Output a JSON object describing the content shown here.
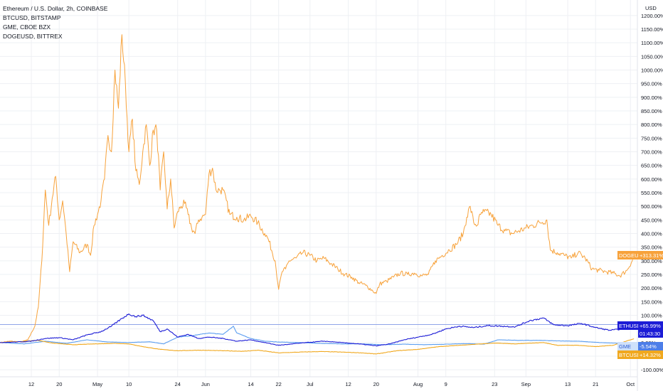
{
  "legend": {
    "title": "Ethereum / U.S. Dollar, 2h, COINBASE",
    "items": [
      "BTCUSD, BITSTAMP",
      "GME, CBOE BZX",
      "DOGEUSD, BITTREX"
    ]
  },
  "colors": {
    "doge": "#f7a23b",
    "eth": "#1c1cd6",
    "gme": "#5b9ef0",
    "btc": "#f0a81e",
    "grid": "#eef0f4",
    "axis_text": "#131722"
  },
  "badges": {
    "doge": {
      "name": "DOGEUSD",
      "value": "+313.31%"
    },
    "eth": {
      "name": "ETHUSD",
      "value": "+65.99%",
      "countdown": "01:43:30"
    },
    "gme": {
      "name": "GME",
      "value": "-5.54%"
    },
    "btc": {
      "name": "BTCUSD",
      "value": "+14.32%"
    }
  },
  "chart_data": {
    "type": "line",
    "ylabel": "USD",
    "ylim": [
      -110,
      1210
    ],
    "y_ticks": [
      -100,
      -50,
      0,
      50,
      100,
      150,
      200,
      250,
      300,
      350,
      400,
      450,
      500,
      550,
      600,
      650,
      700,
      750,
      800,
      850,
      900,
      950,
      1000,
      1050,
      1100,
      1150,
      1200
    ],
    "y_tick_labels": [
      "-100.00%",
      "-50.00%",
      "0.00%",
      "50.00%",
      "100.00%",
      "150.00%",
      "200.00%",
      "250.00%",
      "300.00%",
      "350.00%",
      "400.00%",
      "450.00%",
      "500.00%",
      "550.00%",
      "600.00%",
      "650.00%",
      "700.00%",
      "750.00%",
      "800.00%",
      "850.00%",
      "900.00%",
      "950.00%",
      "1000.00%",
      "1050.00%",
      "1100.00%",
      "1150.00%",
      "1200.00%"
    ],
    "x_ticks": [
      {
        "date": "2021-04-12",
        "label": "12"
      },
      {
        "date": "2021-04-20",
        "label": "20"
      },
      {
        "date": "2021-05-01",
        "label": "May"
      },
      {
        "date": "2021-05-10",
        "label": "10"
      },
      {
        "date": "2021-05-24",
        "label": "24"
      },
      {
        "date": "2021-06-01",
        "label": "Jun"
      },
      {
        "date": "2021-06-14",
        "label": "14"
      },
      {
        "date": "2021-06-22",
        "label": "22"
      },
      {
        "date": "2021-07-01",
        "label": "Jul"
      },
      {
        "date": "2021-07-12",
        "label": "12"
      },
      {
        "date": "2021-07-20",
        "label": "20"
      },
      {
        "date": "2021-08-01",
        "label": "Aug"
      },
      {
        "date": "2021-08-09",
        "label": "9"
      },
      {
        "date": "2021-08-23",
        "label": "23"
      },
      {
        "date": "2021-09-01",
        "label": "Sep"
      },
      {
        "date": "2021-09-13",
        "label": "13"
      },
      {
        "date": "2021-09-21",
        "label": "21"
      },
      {
        "date": "2021-10-01",
        "label": "Oct"
      }
    ],
    "x_range": [
      "2021-04-03",
      "2021-10-03"
    ],
    "grid": true,
    "reference_line": {
      "y": 65.99
    },
    "series": [
      {
        "name": "DOGEUSD",
        "color": "#f7a23b",
        "points": [
          [
            "2021-04-03",
            0
          ],
          [
            "2021-04-06",
            5
          ],
          [
            "2021-04-09",
            2
          ],
          [
            "2021-04-11",
            10
          ],
          [
            "2021-04-13",
            60
          ],
          [
            "2021-04-14",
            130
          ],
          [
            "2021-04-15",
            300
          ],
          [
            "2021-04-16",
            560
          ],
          [
            "2021-04-17",
            430
          ],
          [
            "2021-04-18",
            530
          ],
          [
            "2021-04-19",
            610
          ],
          [
            "2021-04-20",
            450
          ],
          [
            "2021-04-21",
            520
          ],
          [
            "2021-04-22",
            400
          ],
          [
            "2021-04-23",
            260
          ],
          [
            "2021-04-24",
            370
          ],
          [
            "2021-04-26",
            330
          ],
          [
            "2021-04-28",
            360
          ],
          [
            "2021-04-29",
            320
          ],
          [
            "2021-04-30",
            430
          ],
          [
            "2021-05-01",
            470
          ],
          [
            "2021-05-02",
            520
          ],
          [
            "2021-05-03",
            600
          ],
          [
            "2021-05-04",
            760
          ],
          [
            "2021-05-05",
            700
          ],
          [
            "2021-05-06",
            1000
          ],
          [
            "2021-05-07",
            860
          ],
          [
            "2021-05-08",
            1130
          ],
          [
            "2021-05-09",
            950
          ],
          [
            "2021-05-10",
            700
          ],
          [
            "2021-05-11",
            820
          ],
          [
            "2021-05-12",
            630
          ],
          [
            "2021-05-13",
            580
          ],
          [
            "2021-05-14",
            700
          ],
          [
            "2021-05-15",
            800
          ],
          [
            "2021-05-16",
            650
          ],
          [
            "2021-05-17",
            780
          ],
          [
            "2021-05-18",
            780
          ],
          [
            "2021-05-19",
            560
          ],
          [
            "2021-05-20",
            700
          ],
          [
            "2021-05-21",
            490
          ],
          [
            "2021-05-22",
            600
          ],
          [
            "2021-05-23",
            420
          ],
          [
            "2021-05-24",
            480
          ],
          [
            "2021-05-25",
            500
          ],
          [
            "2021-05-26",
            510
          ],
          [
            "2021-05-27",
            470
          ],
          [
            "2021-05-28",
            420
          ],
          [
            "2021-05-29",
            400
          ],
          [
            "2021-05-30",
            450
          ],
          [
            "2021-05-31",
            460
          ],
          [
            "2021-06-01",
            470
          ],
          [
            "2021-06-02",
            620
          ],
          [
            "2021-06-03",
            640
          ],
          [
            "2021-06-04",
            560
          ],
          [
            "2021-06-05",
            560
          ],
          [
            "2021-06-06",
            560
          ],
          [
            "2021-06-08",
            470
          ],
          [
            "2021-06-10",
            460
          ],
          [
            "2021-06-12",
            450
          ],
          [
            "2021-06-14",
            465
          ],
          [
            "2021-06-16",
            440
          ],
          [
            "2021-06-18",
            400
          ],
          [
            "2021-06-19",
            380
          ],
          [
            "2021-06-21",
            300
          ],
          [
            "2021-06-22",
            195
          ],
          [
            "2021-06-23",
            260
          ],
          [
            "2021-06-24",
            270
          ],
          [
            "2021-06-25",
            300
          ],
          [
            "2021-06-27",
            310
          ],
          [
            "2021-06-29",
            330
          ],
          [
            "2021-07-01",
            320
          ],
          [
            "2021-07-03",
            300
          ],
          [
            "2021-07-05",
            310
          ],
          [
            "2021-07-07",
            290
          ],
          [
            "2021-07-09",
            270
          ],
          [
            "2021-07-11",
            250
          ],
          [
            "2021-07-13",
            240
          ],
          [
            "2021-07-15",
            220
          ],
          [
            "2021-07-17",
            210
          ],
          [
            "2021-07-19",
            190
          ],
          [
            "2021-07-20",
            180
          ],
          [
            "2021-07-21",
            215
          ],
          [
            "2021-07-23",
            225
          ],
          [
            "2021-07-25",
            240
          ],
          [
            "2021-07-27",
            255
          ],
          [
            "2021-07-29",
            250
          ],
          [
            "2021-07-31",
            255
          ],
          [
            "2021-08-02",
            245
          ],
          [
            "2021-08-04",
            250
          ],
          [
            "2021-08-06",
            300
          ],
          [
            "2021-08-08",
            320
          ],
          [
            "2021-08-10",
            340
          ],
          [
            "2021-08-12",
            360
          ],
          [
            "2021-08-14",
            400
          ],
          [
            "2021-08-15",
            460
          ],
          [
            "2021-08-16",
            500
          ],
          [
            "2021-08-17",
            440
          ],
          [
            "2021-08-18",
            430
          ],
          [
            "2021-08-19",
            470
          ],
          [
            "2021-08-20",
            480
          ],
          [
            "2021-08-22",
            470
          ],
          [
            "2021-08-24",
            430
          ],
          [
            "2021-08-26",
            410
          ],
          [
            "2021-08-28",
            400
          ],
          [
            "2021-08-30",
            410
          ],
          [
            "2021-09-01",
            420
          ],
          [
            "2021-09-03",
            430
          ],
          [
            "2021-09-05",
            440
          ],
          [
            "2021-09-07",
            450
          ],
          [
            "2021-09-08",
            340
          ],
          [
            "2021-09-10",
            330
          ],
          [
            "2021-09-12",
            320
          ],
          [
            "2021-09-14",
            310
          ],
          [
            "2021-09-16",
            330
          ],
          [
            "2021-09-18",
            310
          ],
          [
            "2021-09-20",
            270
          ],
          [
            "2021-09-22",
            265
          ],
          [
            "2021-09-24",
            260
          ],
          [
            "2021-09-26",
            255
          ],
          [
            "2021-09-28",
            245
          ],
          [
            "2021-09-30",
            265
          ],
          [
            "2021-10-02",
            313
          ]
        ]
      },
      {
        "name": "ETHUSD",
        "color": "#1c1cd6",
        "points": [
          [
            "2021-04-03",
            0
          ],
          [
            "2021-04-08",
            2
          ],
          [
            "2021-04-12",
            5
          ],
          [
            "2021-04-16",
            15
          ],
          [
            "2021-04-20",
            18
          ],
          [
            "2021-04-24",
            10
          ],
          [
            "2021-04-28",
            28
          ],
          [
            "2021-05-02",
            40
          ],
          [
            "2021-05-05",
            60
          ],
          [
            "2021-05-08",
            88
          ],
          [
            "2021-05-10",
            105
          ],
          [
            "2021-05-12",
            95
          ],
          [
            "2021-05-14",
            100
          ],
          [
            "2021-05-17",
            80
          ],
          [
            "2021-05-19",
            40
          ],
          [
            "2021-05-21",
            50
          ],
          [
            "2021-05-24",
            20
          ],
          [
            "2021-05-27",
            30
          ],
          [
            "2021-05-30",
            15
          ],
          [
            "2021-06-02",
            20
          ],
          [
            "2021-06-06",
            15
          ],
          [
            "2021-06-10",
            5
          ],
          [
            "2021-06-14",
            10
          ],
          [
            "2021-06-18",
            0
          ],
          [
            "2021-06-22",
            -10
          ],
          [
            "2021-06-26",
            -5
          ],
          [
            "2021-06-30",
            0
          ],
          [
            "2021-07-05",
            5
          ],
          [
            "2021-07-10",
            0
          ],
          [
            "2021-07-15",
            -5
          ],
          [
            "2021-07-20",
            -12
          ],
          [
            "2021-07-24",
            -5
          ],
          [
            "2021-07-28",
            10
          ],
          [
            "2021-08-01",
            20
          ],
          [
            "2021-08-05",
            30
          ],
          [
            "2021-08-09",
            50
          ],
          [
            "2021-08-13",
            60
          ],
          [
            "2021-08-17",
            55
          ],
          [
            "2021-08-21",
            62
          ],
          [
            "2021-08-25",
            60
          ],
          [
            "2021-08-29",
            58
          ],
          [
            "2021-09-02",
            80
          ],
          [
            "2021-09-06",
            90
          ],
          [
            "2021-09-09",
            65
          ],
          [
            "2021-09-13",
            62
          ],
          [
            "2021-09-17",
            70
          ],
          [
            "2021-09-21",
            55
          ],
          [
            "2021-09-25",
            45
          ],
          [
            "2021-09-29",
            50
          ],
          [
            "2021-10-02",
            66
          ]
        ]
      },
      {
        "name": "GME",
        "color": "#5b9ef0",
        "points": [
          [
            "2021-04-03",
            0
          ],
          [
            "2021-04-10",
            -5
          ],
          [
            "2021-04-16",
            5
          ],
          [
            "2021-04-22",
            -3
          ],
          [
            "2021-04-28",
            10
          ],
          [
            "2021-05-04",
            2
          ],
          [
            "2021-05-10",
            0
          ],
          [
            "2021-05-16",
            3
          ],
          [
            "2021-05-20",
            -5
          ],
          [
            "2021-05-24",
            20
          ],
          [
            "2021-05-28",
            25
          ],
          [
            "2021-06-02",
            35
          ],
          [
            "2021-06-06",
            30
          ],
          [
            "2021-06-09",
            60
          ],
          [
            "2021-06-10",
            35
          ],
          [
            "2021-06-14",
            15
          ],
          [
            "2021-06-18",
            5
          ],
          [
            "2021-06-22",
            2
          ],
          [
            "2021-06-28",
            0
          ],
          [
            "2021-07-04",
            -3
          ],
          [
            "2021-07-10",
            -5
          ],
          [
            "2021-07-16",
            -5
          ],
          [
            "2021-07-22",
            -8
          ],
          [
            "2021-07-28",
            -6
          ],
          [
            "2021-08-03",
            -8
          ],
          [
            "2021-08-09",
            -6
          ],
          [
            "2021-08-15",
            -4
          ],
          [
            "2021-08-20",
            -6
          ],
          [
            "2021-08-24",
            10
          ],
          [
            "2021-08-30",
            8
          ],
          [
            "2021-09-05",
            8
          ],
          [
            "2021-09-10",
            6
          ],
          [
            "2021-09-16",
            5
          ],
          [
            "2021-09-22",
            0
          ],
          [
            "2021-09-28",
            -3
          ],
          [
            "2021-10-02",
            -5.5
          ]
        ]
      },
      {
        "name": "BTCUSD",
        "color": "#f0a81e",
        "points": [
          [
            "2021-04-03",
            0
          ],
          [
            "2021-04-08",
            3
          ],
          [
            "2021-04-14",
            8
          ],
          [
            "2021-04-18",
            -2
          ],
          [
            "2021-04-24",
            -8
          ],
          [
            "2021-04-30",
            -5
          ],
          [
            "2021-05-06",
            -3
          ],
          [
            "2021-05-10",
            -5
          ],
          [
            "2021-05-14",
            -15
          ],
          [
            "2021-05-19",
            -25
          ],
          [
            "2021-05-24",
            -30
          ],
          [
            "2021-05-30",
            -28
          ],
          [
            "2021-06-06",
            -30
          ],
          [
            "2021-06-12",
            -32
          ],
          [
            "2021-06-16",
            -28
          ],
          [
            "2021-06-22",
            -38
          ],
          [
            "2021-06-28",
            -35
          ],
          [
            "2021-07-04",
            -33
          ],
          [
            "2021-07-10",
            -35
          ],
          [
            "2021-07-16",
            -38
          ],
          [
            "2021-07-20",
            -42
          ],
          [
            "2021-07-26",
            -30
          ],
          [
            "2021-08-01",
            -25
          ],
          [
            "2021-08-07",
            -15
          ],
          [
            "2021-08-13",
            -10
          ],
          [
            "2021-08-19",
            -5
          ],
          [
            "2021-08-23",
            -2
          ],
          [
            "2021-08-29",
            -5
          ],
          [
            "2021-09-06",
            0
          ],
          [
            "2021-09-10",
            -10
          ],
          [
            "2021-09-16",
            -10
          ],
          [
            "2021-09-21",
            -15
          ],
          [
            "2021-09-26",
            -10
          ],
          [
            "2021-10-02",
            14
          ]
        ]
      }
    ]
  }
}
